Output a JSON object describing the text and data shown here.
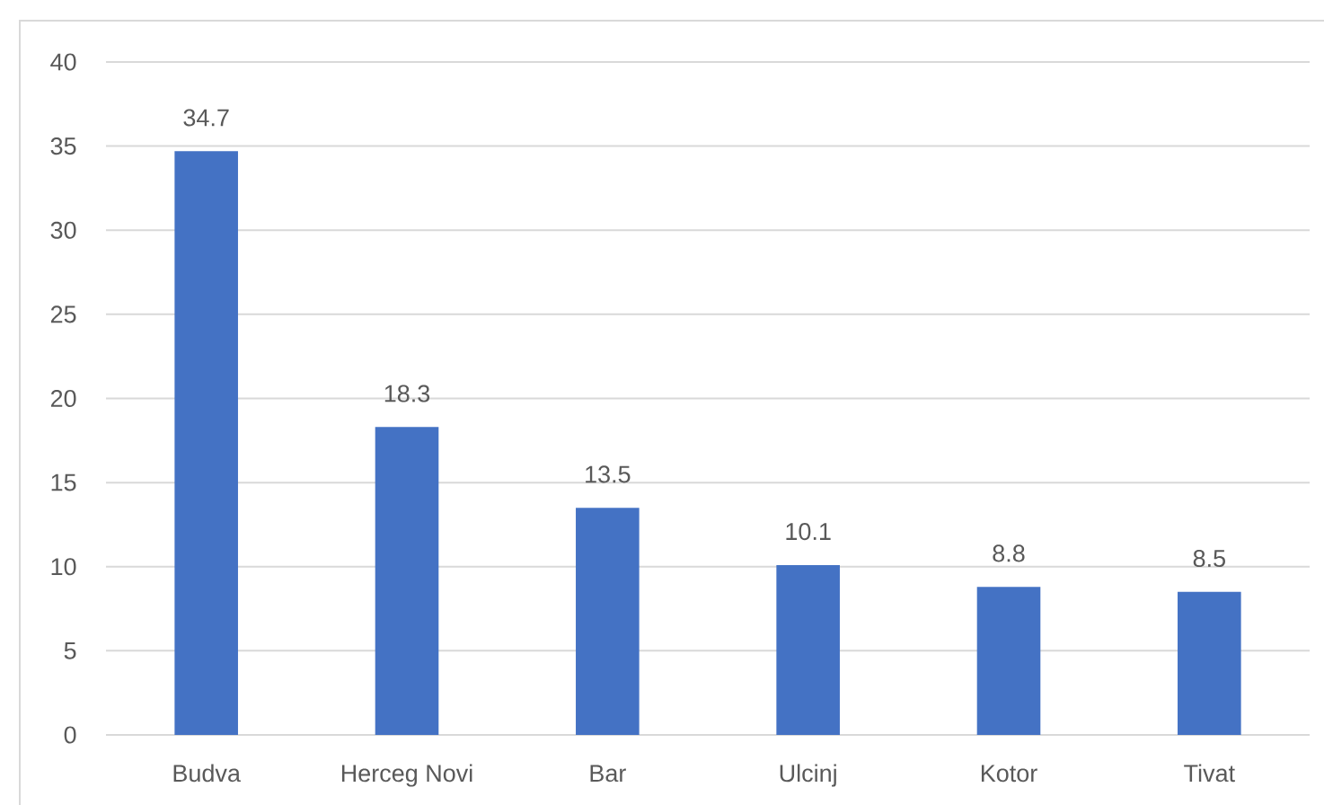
{
  "chart_data": {
    "type": "bar",
    "categories": [
      "Budva",
      "Herceg Novi",
      "Bar",
      "Ulcinj",
      "Kotor",
      "Tivat"
    ],
    "values": [
      34.7,
      18.3,
      13.5,
      10.1,
      8.8,
      8.5
    ],
    "color": "#4472c4",
    "ylim": [
      0,
      40
    ],
    "yticks": [
      0,
      5,
      10,
      15,
      20,
      25,
      30,
      35,
      40
    ],
    "grid": "y",
    "data_labels": true
  }
}
